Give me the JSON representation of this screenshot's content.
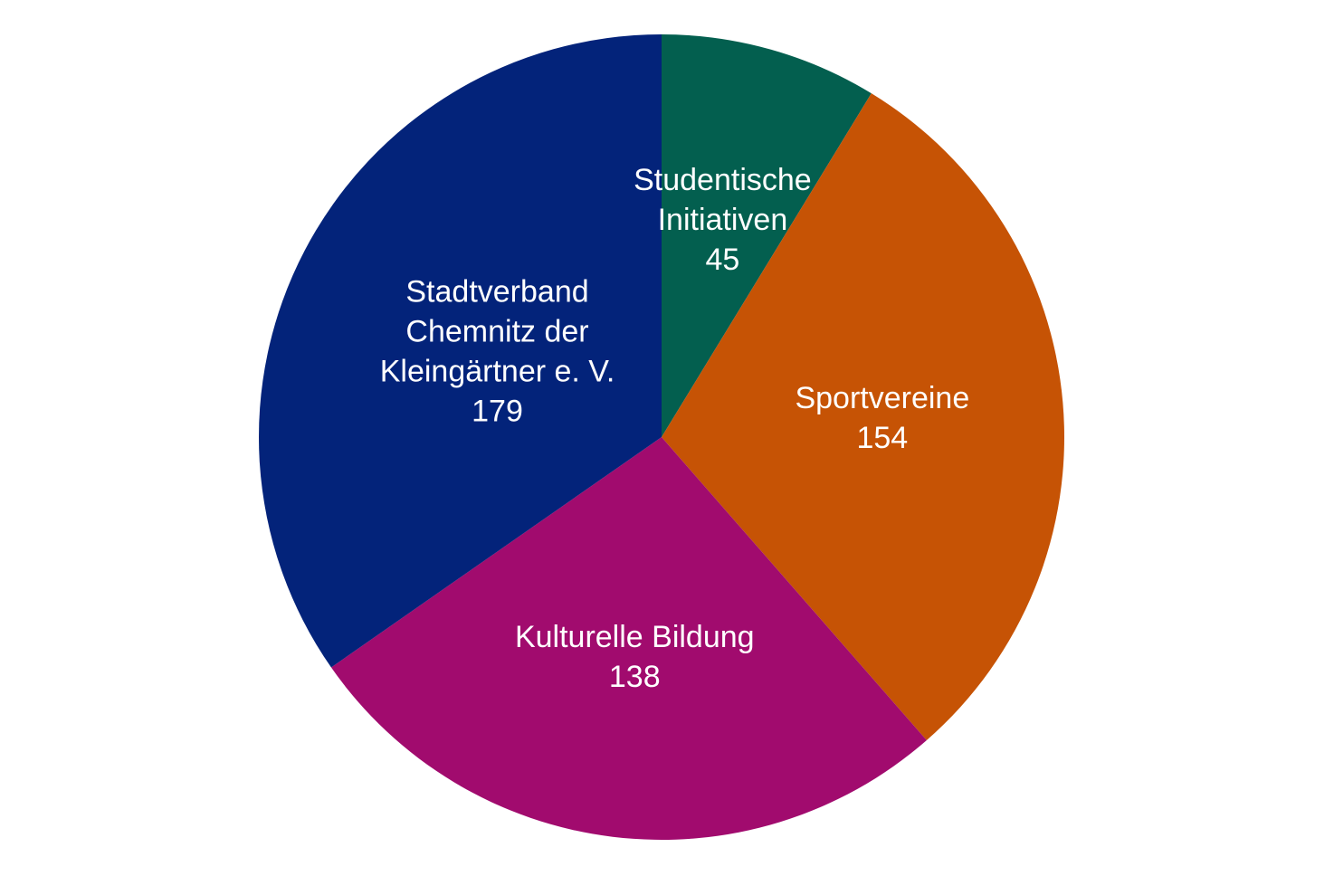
{
  "chart_data": {
    "type": "pie",
    "title": "",
    "start_angle_deg": 0,
    "direction": "clockwise",
    "slices": [
      {
        "label_lines": [
          "Studentische",
          "Initiativen"
        ],
        "value": 45,
        "color": "#035F4F"
      },
      {
        "label_lines": [
          "Sportvereine"
        ],
        "value": 154,
        "color": "#C65305"
      },
      {
        "label_lines": [
          "Kulturelle Bildung"
        ],
        "value": 138,
        "color": "#A10B6E"
      },
      {
        "label_lines": [
          "Stadtverband",
          "Chemnitz der",
          "Kleingärtner e. V."
        ],
        "value": 179,
        "color": "#03237A"
      }
    ],
    "legend": "none",
    "data_labels": "inside"
  }
}
